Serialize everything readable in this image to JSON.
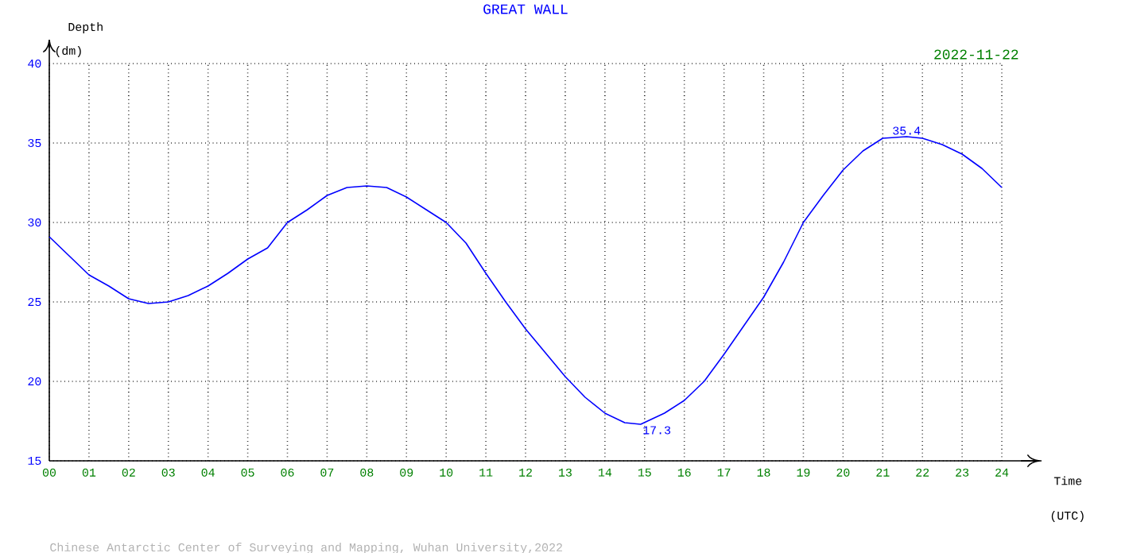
{
  "chart_data": {
    "type": "line",
    "title": "GREAT WALL",
    "subtitle": "2022-11-22",
    "xlabel": "Time",
    "ylabel": "Depth",
    "annotations": [
      "(dm)",
      "(UTC)",
      "Chinese Antarctic Center of Surveying and Mapping, Wuhan University,2022",
      {
        "text": "35.4",
        "x": 21.6,
        "y": 35.4
      },
      {
        "text": "17.3",
        "x": 14.9,
        "y": 17.3
      }
    ],
    "x": [
      0,
      0.5,
      1,
      1.5,
      2,
      2.5,
      3,
      3.5,
      4,
      4.5,
      5,
      5.5,
      6,
      6.5,
      7,
      7.5,
      8,
      8.5,
      9,
      9.5,
      10,
      10.5,
      11,
      11.5,
      12,
      12.5,
      13,
      13.5,
      14,
      14.5,
      14.9,
      15.5,
      16,
      16.5,
      17,
      17.5,
      18,
      18.5,
      19,
      19.5,
      20,
      20.5,
      21,
      21.6,
      22,
      22.5,
      23,
      23.5,
      24
    ],
    "series": [
      {
        "color": "#0000ff",
        "values": [
          29.1,
          27.9,
          26.7,
          26.0,
          25.2,
          24.9,
          25.0,
          25.4,
          26.0,
          26.8,
          27.7,
          28.4,
          30.0,
          30.8,
          31.7,
          32.2,
          32.3,
          32.2,
          31.6,
          30.8,
          30.0,
          28.7,
          26.8,
          25.0,
          23.3,
          21.8,
          20.3,
          19.0,
          18.0,
          17.4,
          17.3,
          18.0,
          18.8,
          20.0,
          21.7,
          23.5,
          25.3,
          27.5,
          30.0,
          31.7,
          33.3,
          34.5,
          35.3,
          35.4,
          35.3,
          34.9,
          34.3,
          33.4,
          32.2
        ]
      }
    ],
    "xlim": [
      0,
      24
    ],
    "ylim": [
      15,
      40
    ],
    "xticks": [
      {
        "value": 0,
        "label": "00"
      },
      {
        "value": 1,
        "label": "01"
      },
      {
        "value": 2,
        "label": "02"
      },
      {
        "value": 3,
        "label": "03"
      },
      {
        "value": 4,
        "label": "04"
      },
      {
        "value": 5,
        "label": "05"
      },
      {
        "value": 6,
        "label": "06"
      },
      {
        "value": 7,
        "label": "07"
      },
      {
        "value": 8,
        "label": "08"
      },
      {
        "value": 9,
        "label": "09"
      },
      10,
      11,
      12,
      13,
      14,
      15,
      16,
      17,
      18,
      19,
      20,
      21,
      22,
      23,
      24
    ],
    "yticks": [
      15,
      20,
      25,
      30,
      35,
      40
    ],
    "grid": true,
    "legend": false,
    "marker": "none",
    "line_style": "solid"
  }
}
